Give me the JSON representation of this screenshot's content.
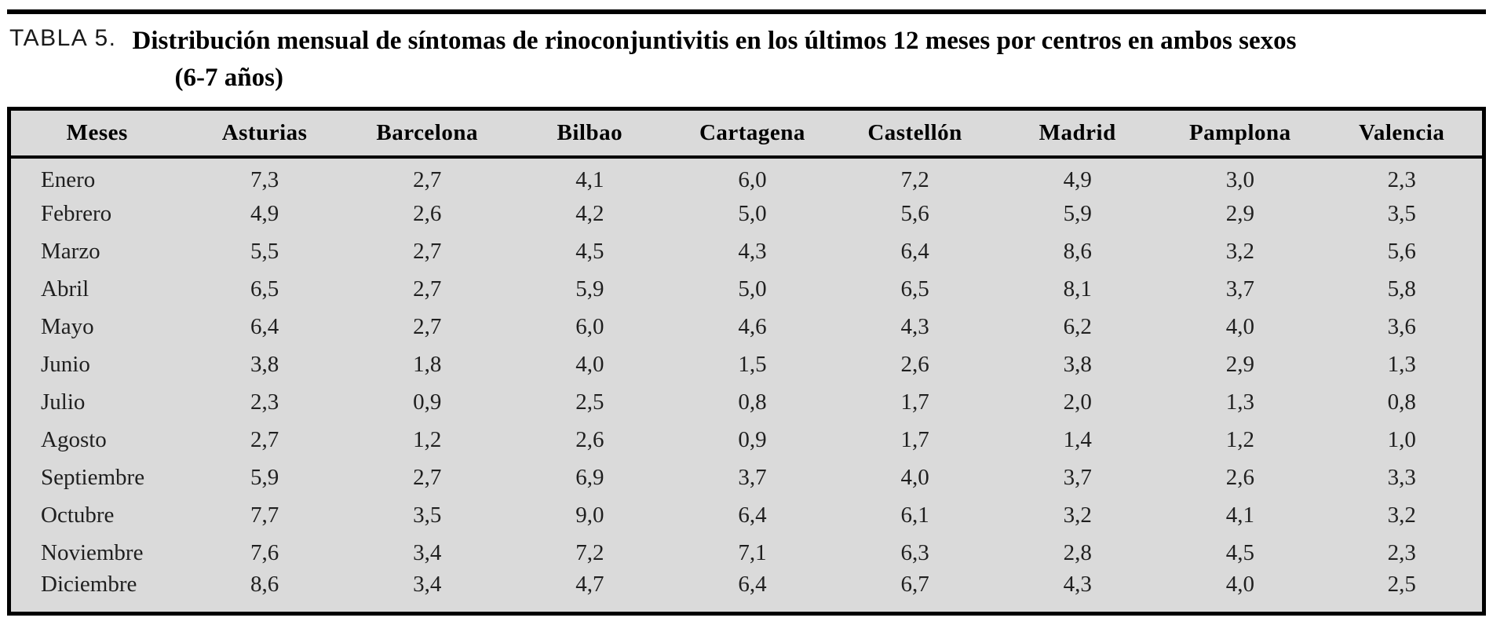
{
  "caption": {
    "label": "TABLA 5.",
    "title_line1": "Distribución mensual de síntomas de rinoconjuntivitis en los últimos 12 meses por centros en ambos sexos",
    "title_line2": "(6-7 años)"
  },
  "table": {
    "columns": [
      "Meses",
      "Asturias",
      "Barcelona",
      "Bilbao",
      "Cartagena",
      "Castellón",
      "Madrid",
      "Pamplona",
      "Valencia"
    ],
    "rows": [
      [
        "Enero",
        "7,3",
        "2,7",
        "4,1",
        "6,0",
        "7,2",
        "4,9",
        "3,0",
        "2,3"
      ],
      [
        "Febrero",
        "4,9",
        "2,6",
        "4,2",
        "5,0",
        "5,6",
        "5,9",
        "2,9",
        "3,5"
      ],
      [
        "Marzo",
        "5,5",
        "2,7",
        "4,5",
        "4,3",
        "6,4",
        "8,6",
        "3,2",
        "5,6"
      ],
      [
        "Abril",
        "6,5",
        "2,7",
        "5,9",
        "5,0",
        "6,5",
        "8,1",
        "3,7",
        "5,8"
      ],
      [
        "Mayo",
        "6,4",
        "2,7",
        "6,0",
        "4,6",
        "4,3",
        "6,2",
        "4,0",
        "3,6"
      ],
      [
        "Junio",
        "3,8",
        "1,8",
        "4,0",
        "1,5",
        "2,6",
        "3,8",
        "2,9",
        "1,3"
      ],
      [
        "Julio",
        "2,3",
        "0,9",
        "2,5",
        "0,8",
        "1,7",
        "2,0",
        "1,3",
        "0,8"
      ],
      [
        "Agosto",
        "2,7",
        "1,2",
        "2,6",
        "0,9",
        "1,7",
        "1,4",
        "1,2",
        "1,0"
      ],
      [
        "Septiembre",
        "5,9",
        "2,7",
        "6,9",
        "3,7",
        "4,0",
        "3,7",
        "2,6",
        "3,3"
      ],
      [
        "Octubre",
        "7,7",
        "3,5",
        "9,0",
        "6,4",
        "6,1",
        "3,2",
        "4,1",
        "3,2"
      ],
      [
        "Noviembre",
        "7,6",
        "3,4",
        "7,2",
        "7,1",
        "6,3",
        "2,8",
        "4,5",
        "2,3"
      ],
      [
        "Diciembre",
        "8,6",
        "3,4",
        "4,7",
        "6,4",
        "6,7",
        "4,3",
        "4,0",
        "2,5"
      ]
    ]
  },
  "colors": {
    "table_background": "#dadada",
    "border": "#000000",
    "text": "#1f1f1f"
  }
}
